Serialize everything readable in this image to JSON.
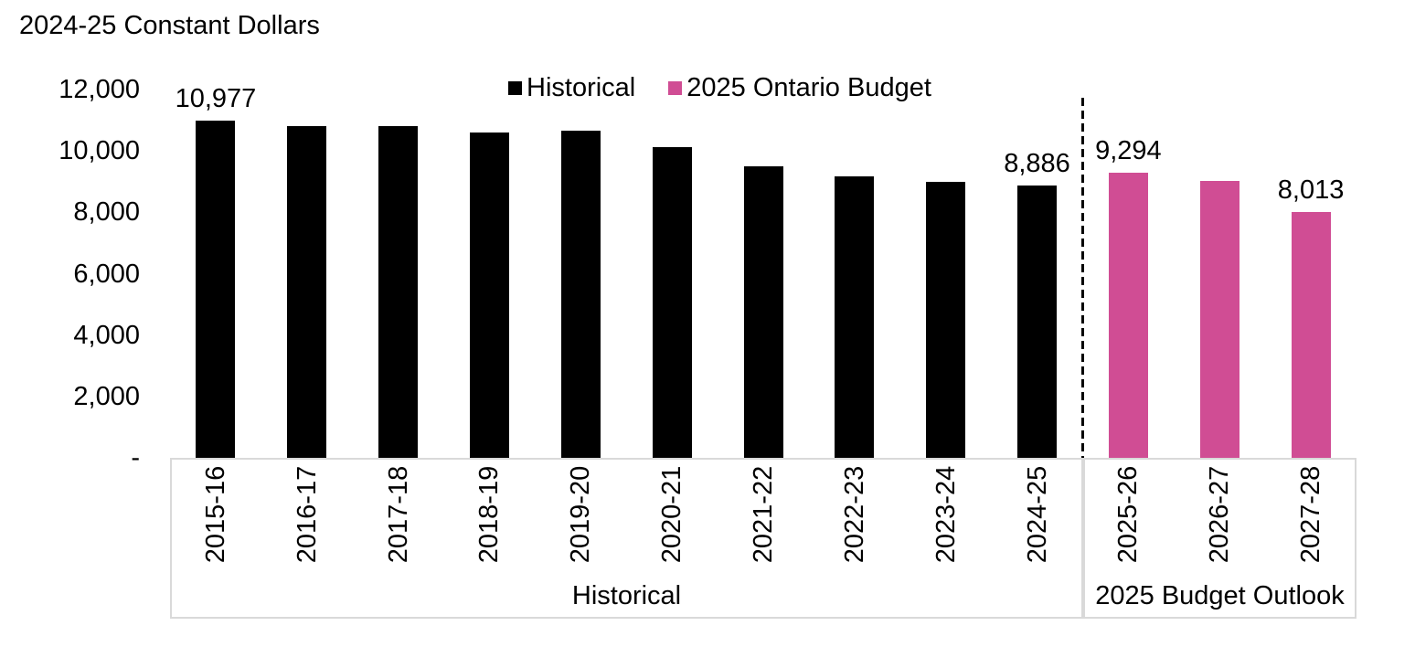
{
  "title": "2024-25 Constant Dollars",
  "legend": {
    "items": [
      {
        "label": "Historical",
        "color": "#000000"
      },
      {
        "label": "2025 Ontario Budget",
        "color": "#D04D94"
      }
    ]
  },
  "chart_data": {
    "type": "bar",
    "title": "2024-25 Constant Dollars",
    "categories": [
      "2015-16",
      "2016-17",
      "2017-18",
      "2018-19",
      "2019-20",
      "2020-21",
      "2021-22",
      "2022-23",
      "2023-24",
      "2024-25",
      "2025-26",
      "2026-27",
      "2027-28"
    ],
    "series": [
      {
        "name": "Historical",
        "color": "#000000",
        "values": [
          10977,
          10800,
          10800,
          10600,
          10650,
          10130,
          9510,
          9170,
          8990,
          8886,
          null,
          null,
          null
        ]
      },
      {
        "name": "2025 Ontario Budget",
        "color": "#D04D94",
        "values": [
          null,
          null,
          null,
          null,
          null,
          null,
          null,
          null,
          null,
          null,
          9294,
          9030,
          8013
        ]
      }
    ],
    "data_labels": [
      {
        "index": 0,
        "category": "2015-16",
        "text": "10,977"
      },
      {
        "index": 9,
        "category": "2024-25",
        "text": "8,886"
      },
      {
        "index": 10,
        "category": "2025-26",
        "text": "9,294"
      },
      {
        "index": 12,
        "category": "2027-28",
        "text": "8,013"
      }
    ],
    "y_axis": {
      "ticks": [
        {
          "label": "12,000",
          "value": 12000
        },
        {
          "label": "10,000",
          "value": 10000
        },
        {
          "label": "8,000",
          "value": 8000
        },
        {
          "label": "6,000",
          "value": 6000
        },
        {
          "label": "4,000",
          "value": 4000
        },
        {
          "label": "2,000",
          "value": 2000
        },
        {
          "label": "-",
          "value": 0
        }
      ],
      "ylim": [
        0,
        12000
      ],
      "gridlines": false
    },
    "x_groups": [
      {
        "label": "Historical",
        "start": 0,
        "end": 9
      },
      {
        "label": "2025 Budget Outlook",
        "start": 10,
        "end": 12
      }
    ],
    "divider": {
      "style": "dashed",
      "color": "#000000",
      "between": [
        "2024-25",
        "2025-26"
      ]
    },
    "legend_position": "top",
    "colors": {
      "historical": "#000000",
      "budget": "#D04D94",
      "axis_box_border": "#D9D9D9"
    }
  }
}
